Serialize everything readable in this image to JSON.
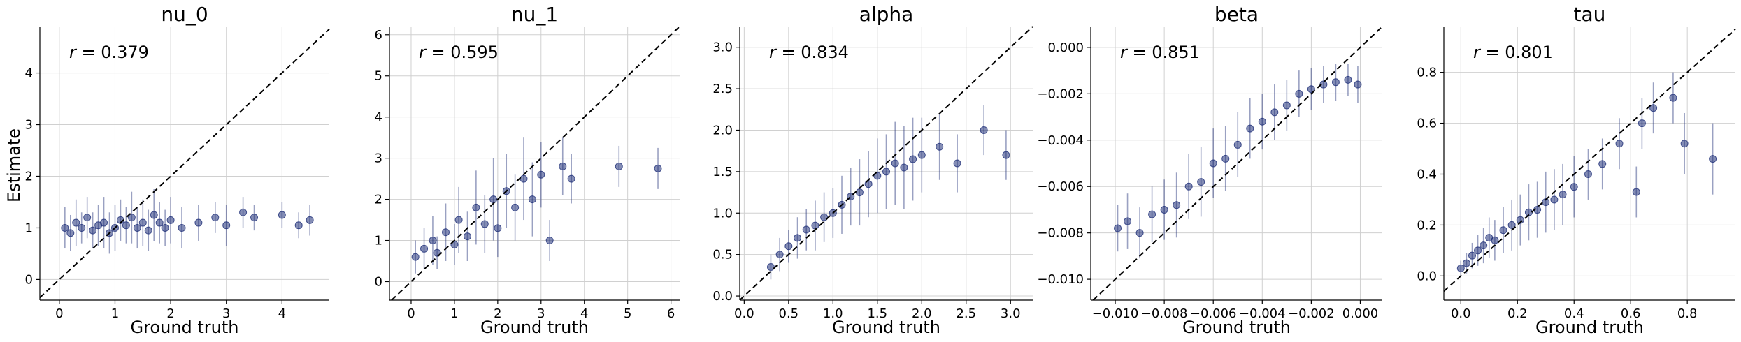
{
  "figure": {
    "ylabel": "Estimate",
    "xlabel": "Ground truth",
    "point_color": "#1f2f78"
  },
  "chart_data": [
    {
      "type": "scatter",
      "title": "nu_0",
      "xlabel": "Ground truth",
      "ylabel": "Estimate",
      "annotation": "r = 0.379",
      "xlim": [
        -0.35,
        4.85
      ],
      "ylim": [
        -0.4,
        4.9
      ],
      "xticks": [
        0,
        1,
        2,
        3,
        4
      ],
      "yticks": [
        0,
        1,
        2,
        3,
        4
      ],
      "diagonal": true,
      "grid": true,
      "points": [
        {
          "x": 0.1,
          "y": 1.0,
          "err": 0.4
        },
        {
          "x": 0.2,
          "y": 0.9,
          "err": 0.35
        },
        {
          "x": 0.3,
          "y": 1.1,
          "err": 0.45
        },
        {
          "x": 0.4,
          "y": 1.0,
          "err": 0.3
        },
        {
          "x": 0.5,
          "y": 1.2,
          "err": 0.4
        },
        {
          "x": 0.6,
          "y": 0.95,
          "err": 0.35
        },
        {
          "x": 0.7,
          "y": 1.05,
          "err": 0.4
        },
        {
          "x": 0.8,
          "y": 1.1,
          "err": 0.5
        },
        {
          "x": 0.9,
          "y": 0.9,
          "err": 0.4
        },
        {
          "x": 1.0,
          "y": 1.0,
          "err": 0.45
        },
        {
          "x": 1.1,
          "y": 1.15,
          "err": 0.4
        },
        {
          "x": 1.2,
          "y": 1.05,
          "err": 0.35
        },
        {
          "x": 1.3,
          "y": 1.2,
          "err": 0.5
        },
        {
          "x": 1.4,
          "y": 1.0,
          "err": 0.4
        },
        {
          "x": 1.5,
          "y": 1.1,
          "err": 0.45
        },
        {
          "x": 1.6,
          "y": 0.95,
          "err": 0.4
        },
        {
          "x": 1.7,
          "y": 1.25,
          "err": 0.5
        },
        {
          "x": 1.8,
          "y": 1.1,
          "err": 0.4
        },
        {
          "x": 1.9,
          "y": 1.0,
          "err": 0.35
        },
        {
          "x": 2.0,
          "y": 1.15,
          "err": 0.45
        },
        {
          "x": 2.2,
          "y": 1.0,
          "err": 0.4
        },
        {
          "x": 2.5,
          "y": 1.1,
          "err": 0.35
        },
        {
          "x": 2.8,
          "y": 1.2,
          "err": 0.3
        },
        {
          "x": 3.0,
          "y": 1.05,
          "err": 0.4
        },
        {
          "x": 3.3,
          "y": 1.3,
          "err": 0.3
        },
        {
          "x": 3.5,
          "y": 1.2,
          "err": 0.25
        },
        {
          "x": 4.0,
          "y": 1.25,
          "err": 0.25
        },
        {
          "x": 4.3,
          "y": 1.05,
          "err": 0.25
        },
        {
          "x": 4.5,
          "y": 1.15,
          "err": 0.3
        }
      ]
    },
    {
      "type": "scatter",
      "title": "nu_1",
      "xlabel": "Ground truth",
      "annotation": "r = 0.595",
      "xlim": [
        -0.5,
        6.2
      ],
      "ylim": [
        -0.45,
        6.2
      ],
      "xticks": [
        0,
        1,
        2,
        3,
        4,
        5,
        6
      ],
      "yticks": [
        0,
        1,
        2,
        3,
        4,
        5,
        6
      ],
      "diagonal": true,
      "grid": true,
      "points": [
        {
          "x": 0.1,
          "y": 0.6,
          "err": 0.4
        },
        {
          "x": 0.3,
          "y": 0.8,
          "err": 0.5
        },
        {
          "x": 0.5,
          "y": 1.0,
          "err": 0.6
        },
        {
          "x": 0.6,
          "y": 0.7,
          "err": 0.4
        },
        {
          "x": 0.8,
          "y": 1.2,
          "err": 0.7
        },
        {
          "x": 1.0,
          "y": 0.9,
          "err": 0.5
        },
        {
          "x": 1.1,
          "y": 1.5,
          "err": 0.8
        },
        {
          "x": 1.3,
          "y": 1.1,
          "err": 0.6
        },
        {
          "x": 1.5,
          "y": 1.8,
          "err": 0.9
        },
        {
          "x": 1.7,
          "y": 1.4,
          "err": 0.7
        },
        {
          "x": 1.9,
          "y": 2.0,
          "err": 1.0
        },
        {
          "x": 2.0,
          "y": 1.3,
          "err": 0.7
        },
        {
          "x": 2.2,
          "y": 2.2,
          "err": 0.9
        },
        {
          "x": 2.4,
          "y": 1.8,
          "err": 0.8
        },
        {
          "x": 2.6,
          "y": 2.5,
          "err": 1.0
        },
        {
          "x": 2.8,
          "y": 2.0,
          "err": 0.9
        },
        {
          "x": 3.0,
          "y": 2.6,
          "err": 0.8
        },
        {
          "x": 3.2,
          "y": 1.0,
          "err": 0.5
        },
        {
          "x": 3.5,
          "y": 2.8,
          "err": 0.7
        },
        {
          "x": 3.7,
          "y": 2.5,
          "err": 0.6
        },
        {
          "x": 4.8,
          "y": 2.8,
          "err": 0.5
        },
        {
          "x": 5.7,
          "y": 2.75,
          "err": 0.5
        }
      ]
    },
    {
      "type": "scatter",
      "title": "alpha",
      "xlabel": "Ground truth",
      "annotation": "r = 0.834",
      "xlim": [
        -0.05,
        3.25
      ],
      "ylim": [
        -0.05,
        3.25
      ],
      "xticks": [
        0.0,
        0.5,
        1.0,
        1.5,
        2.0,
        2.5,
        3.0
      ],
      "yticks": [
        0.0,
        0.5,
        1.0,
        1.5,
        2.0,
        2.5,
        3.0
      ],
      "diagonal": true,
      "grid": true,
      "points": [
        {
          "x": 0.3,
          "y": 0.35,
          "err": 0.15
        },
        {
          "x": 0.4,
          "y": 0.5,
          "err": 0.2
        },
        {
          "x": 0.5,
          "y": 0.6,
          "err": 0.2
        },
        {
          "x": 0.6,
          "y": 0.7,
          "err": 0.25
        },
        {
          "x": 0.7,
          "y": 0.8,
          "err": 0.25
        },
        {
          "x": 0.8,
          "y": 0.85,
          "err": 0.3
        },
        {
          "x": 0.9,
          "y": 0.95,
          "err": 0.3
        },
        {
          "x": 1.0,
          "y": 1.0,
          "err": 0.3
        },
        {
          "x": 1.1,
          "y": 1.1,
          "err": 0.35
        },
        {
          "x": 1.2,
          "y": 1.2,
          "err": 0.35
        },
        {
          "x": 1.3,
          "y": 1.25,
          "err": 0.4
        },
        {
          "x": 1.4,
          "y": 1.35,
          "err": 0.4
        },
        {
          "x": 1.5,
          "y": 1.45,
          "err": 0.45
        },
        {
          "x": 1.6,
          "y": 1.5,
          "err": 0.45
        },
        {
          "x": 1.7,
          "y": 1.6,
          "err": 0.5
        },
        {
          "x": 1.8,
          "y": 1.55,
          "err": 0.5
        },
        {
          "x": 1.9,
          "y": 1.65,
          "err": 0.5
        },
        {
          "x": 2.0,
          "y": 1.7,
          "err": 0.45
        },
        {
          "x": 2.2,
          "y": 1.8,
          "err": 0.4
        },
        {
          "x": 2.4,
          "y": 1.6,
          "err": 0.35
        },
        {
          "x": 2.7,
          "y": 2.0,
          "err": 0.3
        },
        {
          "x": 2.95,
          "y": 1.7,
          "err": 0.3
        }
      ]
    },
    {
      "type": "scatter",
      "title": "beta",
      "xlabel": "Ground truth",
      "annotation": "r = 0.851",
      "xlim": [
        -0.011,
        0.0009
      ],
      "ylim": [
        -0.0109,
        0.0009
      ],
      "xticks": [
        -0.01,
        -0.008,
        -0.006,
        -0.004,
        -0.002,
        0.0
      ],
      "xticklabels": [
        "−0.010",
        "−0.008",
        "−0.006",
        "−0.004",
        "−0.002",
        "0.000"
      ],
      "yticks": [
        -0.01,
        -0.008,
        -0.006,
        -0.004,
        -0.002,
        0.0
      ],
      "yticklabels": [
        "−0.010",
        "−0.008",
        "−0.006",
        "−0.004",
        "−0.002",
        "0.000"
      ],
      "diagonal": true,
      "grid": true,
      "points": [
        {
          "x": -0.0099,
          "y": -0.0078,
          "err": 0.001
        },
        {
          "x": -0.0095,
          "y": -0.0075,
          "err": 0.0012
        },
        {
          "x": -0.009,
          "y": -0.008,
          "err": 0.0011
        },
        {
          "x": -0.0085,
          "y": -0.0072,
          "err": 0.0012
        },
        {
          "x": -0.008,
          "y": -0.007,
          "err": 0.0013
        },
        {
          "x": -0.0075,
          "y": -0.0068,
          "err": 0.0014
        },
        {
          "x": -0.007,
          "y": -0.006,
          "err": 0.0014
        },
        {
          "x": -0.0065,
          "y": -0.0058,
          "err": 0.0015
        },
        {
          "x": -0.006,
          "y": -0.005,
          "err": 0.0015
        },
        {
          "x": -0.0055,
          "y": -0.0048,
          "err": 0.0014
        },
        {
          "x": -0.005,
          "y": -0.0042,
          "err": 0.0014
        },
        {
          "x": -0.0045,
          "y": -0.0035,
          "err": 0.0013
        },
        {
          "x": -0.004,
          "y": -0.0032,
          "err": 0.0012
        },
        {
          "x": -0.0035,
          "y": -0.0028,
          "err": 0.0012
        },
        {
          "x": -0.003,
          "y": -0.0025,
          "err": 0.0011
        },
        {
          "x": -0.0025,
          "y": -0.002,
          "err": 0.001
        },
        {
          "x": -0.002,
          "y": -0.0018,
          "err": 0.0009
        },
        {
          "x": -0.0015,
          "y": -0.0016,
          "err": 0.0008
        },
        {
          "x": -0.001,
          "y": -0.0015,
          "err": 0.0008
        },
        {
          "x": -0.0005,
          "y": -0.0014,
          "err": 0.0007
        },
        {
          "x": -0.0001,
          "y": -0.0016,
          "err": 0.0008
        }
      ]
    },
    {
      "type": "scatter",
      "title": "tau",
      "xlabel": "Ground truth",
      "annotation": "r = 0.801",
      "xlim": [
        -0.06,
        0.97
      ],
      "ylim": [
        -0.095,
        0.98
      ],
      "xticks": [
        0.0,
        0.2,
        0.4,
        0.6,
        0.8
      ],
      "yticks": [
        0.0,
        0.2,
        0.4,
        0.6,
        0.8
      ],
      "diagonal": true,
      "grid": true,
      "points": [
        {
          "x": 0.0,
          "y": 0.03,
          "err": 0.03
        },
        {
          "x": 0.02,
          "y": 0.05,
          "err": 0.04
        },
        {
          "x": 0.04,
          "y": 0.08,
          "err": 0.05
        },
        {
          "x": 0.06,
          "y": 0.1,
          "err": 0.06
        },
        {
          "x": 0.08,
          "y": 0.12,
          "err": 0.07
        },
        {
          "x": 0.1,
          "y": 0.15,
          "err": 0.08
        },
        {
          "x": 0.12,
          "y": 0.14,
          "err": 0.08
        },
        {
          "x": 0.15,
          "y": 0.18,
          "err": 0.09
        },
        {
          "x": 0.18,
          "y": 0.2,
          "err": 0.1
        },
        {
          "x": 0.21,
          "y": 0.22,
          "err": 0.1
        },
        {
          "x": 0.24,
          "y": 0.25,
          "err": 0.11
        },
        {
          "x": 0.27,
          "y": 0.26,
          "err": 0.11
        },
        {
          "x": 0.3,
          "y": 0.29,
          "err": 0.12
        },
        {
          "x": 0.33,
          "y": 0.3,
          "err": 0.12
        },
        {
          "x": 0.36,
          "y": 0.32,
          "err": 0.12
        },
        {
          "x": 0.4,
          "y": 0.35,
          "err": 0.12
        },
        {
          "x": 0.45,
          "y": 0.4,
          "err": 0.1
        },
        {
          "x": 0.5,
          "y": 0.44,
          "err": 0.1
        },
        {
          "x": 0.56,
          "y": 0.52,
          "err": 0.1
        },
        {
          "x": 0.62,
          "y": 0.33,
          "err": 0.1
        },
        {
          "x": 0.64,
          "y": 0.6,
          "err": 0.1
        },
        {
          "x": 0.68,
          "y": 0.66,
          "err": 0.1
        },
        {
          "x": 0.75,
          "y": 0.7,
          "err": 0.1
        },
        {
          "x": 0.79,
          "y": 0.52,
          "err": 0.12
        },
        {
          "x": 0.89,
          "y": 0.46,
          "err": 0.14
        }
      ]
    }
  ]
}
